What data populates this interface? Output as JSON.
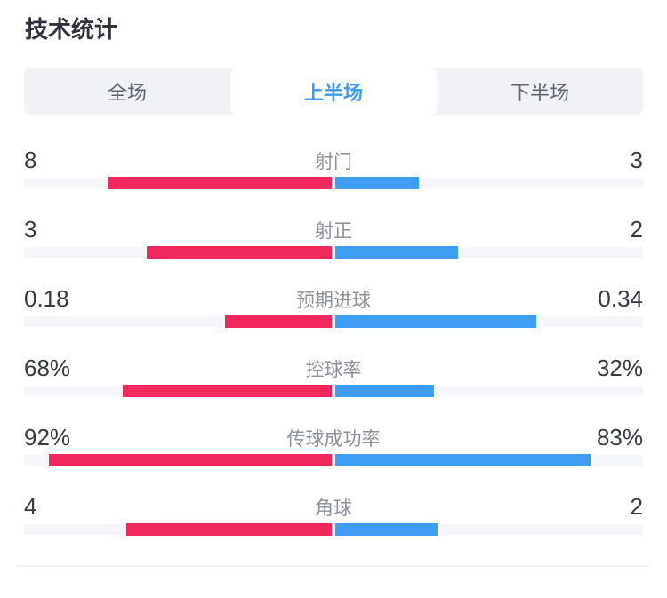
{
  "page": {
    "title": "技术统计"
  },
  "tabs": {
    "items": [
      {
        "label": "全场",
        "active": false
      },
      {
        "label": "上半场",
        "active": true
      },
      {
        "label": "下半场",
        "active": false
      }
    ]
  },
  "colors": {
    "home_bar": "#F1285D",
    "away_bar": "#3F9DF5",
    "track": "#F4F6F9",
    "tab_bar_bg": "#F0F2F5",
    "active_tab_text": "#3D9BF5"
  },
  "chart_data": {
    "type": "bar",
    "orientation": "horizontal-opposed",
    "title": "技术统计",
    "active_tab": "上半场",
    "legend": "none",
    "series": [
      {
        "name": "home",
        "color": "#F1285D",
        "side": "left"
      },
      {
        "name": "away",
        "color": "#3F9DF5",
        "side": "right"
      }
    ],
    "rows": [
      {
        "label": "射门",
        "home": 8,
        "away": 3,
        "home_display": "8",
        "away_display": "3",
        "percent": false
      },
      {
        "label": "射正",
        "home": 3,
        "away": 2,
        "home_display": "3",
        "away_display": "2",
        "percent": false
      },
      {
        "label": "预期进球",
        "home": 0.18,
        "away": 0.34,
        "home_display": "0.18",
        "away_display": "0.34",
        "percent": false
      },
      {
        "label": "控球率",
        "home": 68,
        "away": 32,
        "home_display": "68%",
        "away_display": "32%",
        "percent": true
      },
      {
        "label": "传球成功率",
        "home": 92,
        "away": 83,
        "home_display": "92%",
        "away_display": "83%",
        "percent": true
      },
      {
        "label": "角球",
        "home": 4,
        "away": 2,
        "home_display": "4",
        "away_display": "2",
        "percent": false
      }
    ]
  }
}
